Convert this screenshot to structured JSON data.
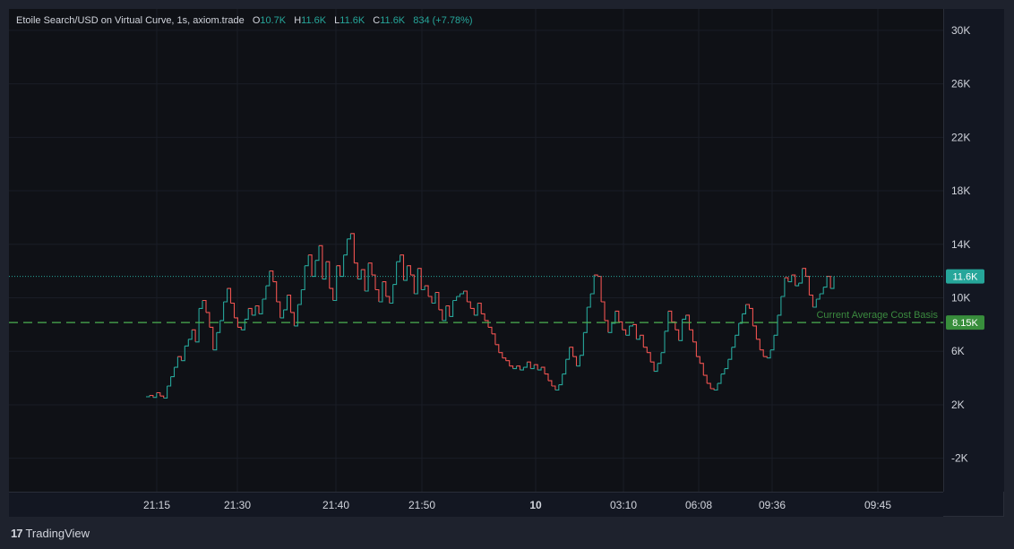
{
  "legend": {
    "symbol": "Etoile Search/USD on Virtual Curve, 1s, axiom.trade",
    "o_label": "O",
    "o_value": "10.7K",
    "h_label": "H",
    "h_value": "11.6K",
    "l_label": "L",
    "l_value": "11.6K",
    "c_label": "C",
    "c_value": "11.6K",
    "change": "834 (+7.78%)"
  },
  "footer": {
    "logo": "17",
    "brand": "TradingView"
  },
  "colors": {
    "up": "#26a69a",
    "down": "#ef5350",
    "basis": "#4caf50",
    "basis_label_bg": "#388e3c",
    "last_label_bg": "#26a69a"
  },
  "chart_data": {
    "type": "line",
    "title": "Etoile Search/USD on Virtual Curve, 1s, axiom.trade",
    "ylim": [
      -4500,
      31600
    ],
    "y_ticks": [
      30000,
      26000,
      22000,
      18000,
      14000,
      10000,
      6000,
      2000,
      -2000
    ],
    "y_tick_labels": [
      "30K",
      "26K",
      "22K",
      "18K",
      "14K",
      "10K",
      "6K",
      "2K",
      "-2K"
    ],
    "x_tick_labels": [
      "21:15",
      "21:30",
      "21:40",
      "21:50",
      "10",
      "03:10",
      "06:08",
      "09:36",
      "09:45"
    ],
    "x_tick_bold": [
      false,
      false,
      false,
      false,
      true,
      false,
      false,
      false,
      false
    ],
    "grid": true,
    "last_price": {
      "value": 11600,
      "label": "11.6K"
    },
    "cost_basis": {
      "value": 8150,
      "label": "8.15K",
      "text": "Current Average Cost Basis"
    },
    "series": [
      {
        "values": [
          2600,
          2700,
          2550,
          2900,
          2650,
          2500,
          3400,
          4100,
          4800,
          5600,
          5300,
          6400,
          6900,
          7600,
          6700,
          9200,
          9800,
          8900,
          7800,
          6100,
          7400,
          8300,
          9700,
          10700,
          9600,
          8500,
          7800,
          7600,
          8400,
          9200,
          8700,
          9400,
          8800,
          9900,
          10900,
          12000,
          11200,
          9700,
          8500,
          9100,
          10200,
          8900,
          7900,
          9500,
          10600,
          12400,
          13200,
          11600,
          12800,
          13900,
          11400,
          12700,
          10700,
          9800,
          12400,
          11600,
          13200,
          14400,
          14800,
          12600,
          11400,
          12100,
          10500,
          12600,
          11700,
          10600,
          9700,
          11200,
          10100,
          9600,
          11000,
          12700,
          13200,
          11300,
          12400,
          11700,
          10300,
          12200,
          10600,
          10900,
          10100,
          9600,
          10400,
          9100,
          8300,
          9400,
          8600,
          9800,
          10100,
          10300,
          10500,
          9700,
          9200,
          8700,
          9600,
          8800,
          8300,
          7800,
          7300,
          6500,
          5900,
          5500,
          5300,
          4900,
          4700,
          4900,
          4600,
          4800,
          5200,
          4700,
          5000,
          4600,
          4800,
          4300,
          3800,
          3400,
          3100,
          3500,
          4300,
          5400,
          6300,
          5600,
          4900,
          5700,
          7400,
          9300,
          10300,
          11700,
          11600,
          9700,
          8300,
          7400,
          8100,
          9000,
          8200,
          7600,
          7200,
          7900,
          8000,
          6900,
          7200,
          6300,
          5900,
          5200,
          4500,
          5100,
          5900,
          7500,
          9000,
          8200,
          7600,
          6800,
          8400,
          8700,
          7600,
          6700,
          5600,
          5100,
          4200,
          3600,
          3200,
          3100,
          3600,
          4300,
          4700,
          5400,
          6300,
          7200,
          8100,
          8800,
          9500,
          9200,
          7900,
          6900,
          6100,
          5600,
          5500,
          6100,
          7200,
          8700,
          10100,
          11500,
          11200,
          11700,
          10900,
          11100,
          12200,
          11600,
          10200,
          9300,
          9900,
          10300,
          10800,
          11600,
          10700,
          11600
        ]
      }
    ]
  }
}
